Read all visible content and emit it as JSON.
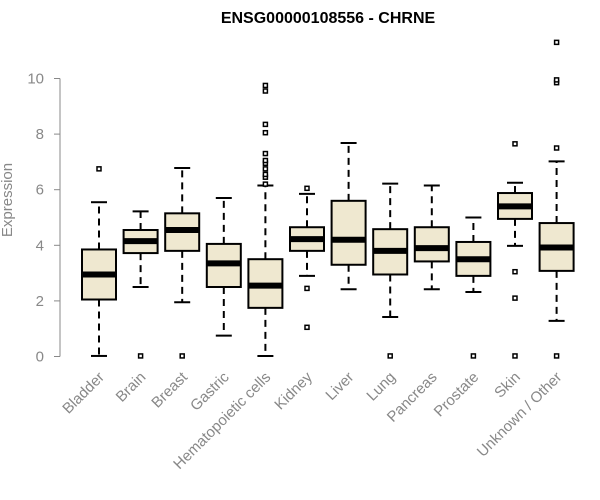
{
  "chart_data": {
    "type": "box",
    "title": "ENSG00000108556 - CHRNE",
    "xlabel": "",
    "ylabel": "Expression",
    "ylim": [
      0,
      11.5
    ],
    "yticks": [
      0,
      2,
      4,
      6,
      8,
      10
    ],
    "grid": false,
    "legend": "none",
    "colors": {
      "box_fill": "#efe8d0",
      "stroke": "#000000",
      "axis": "#888888"
    },
    "categories": [
      "Bladder",
      "Brain",
      "Breast",
      "Gastric",
      "Hematopoietic cells",
      "Kidney",
      "Liver",
      "Lung",
      "Pancreas",
      "Prostate",
      "Skin",
      "Unknown / Other"
    ],
    "boxes": [
      {
        "q1": 2.05,
        "median": 2.95,
        "q3": 3.85,
        "whisker_low": 0.02,
        "whisker_high": 5.55,
        "outliers": [
          6.75
        ]
      },
      {
        "q1": 3.72,
        "median": 4.15,
        "q3": 4.55,
        "whisker_low": 2.5,
        "whisker_high": 5.22,
        "outliers": [
          0.02
        ]
      },
      {
        "q1": 3.8,
        "median": 4.55,
        "q3": 5.15,
        "whisker_low": 1.95,
        "whisker_high": 6.78,
        "outliers": [
          0.02
        ]
      },
      {
        "q1": 2.5,
        "median": 3.35,
        "q3": 4.05,
        "whisker_low": 0.75,
        "whisker_high": 5.7,
        "outliers": []
      },
      {
        "q1": 1.75,
        "median": 2.55,
        "q3": 3.5,
        "whisker_low": 0.02,
        "whisker_high": 6.15,
        "outliers": [
          6.2,
          6.45,
          6.55,
          6.75,
          6.95,
          7.05,
          7.3,
          8.05,
          8.35,
          9.55,
          9.75
        ]
      },
      {
        "q1": 3.8,
        "median": 4.22,
        "q3": 4.65,
        "whisker_low": 2.9,
        "whisker_high": 5.85,
        "outliers": [
          6.05,
          2.45,
          1.05
        ]
      },
      {
        "q1": 3.3,
        "median": 4.2,
        "q3": 5.6,
        "whisker_low": 2.42,
        "whisker_high": 7.68,
        "outliers": []
      },
      {
        "q1": 2.95,
        "median": 3.8,
        "q3": 4.58,
        "whisker_low": 1.42,
        "whisker_high": 6.22,
        "outliers": [
          0.02
        ]
      },
      {
        "q1": 3.42,
        "median": 3.9,
        "q3": 4.65,
        "whisker_low": 2.42,
        "whisker_high": 6.15,
        "outliers": []
      },
      {
        "q1": 2.9,
        "median": 3.5,
        "q3": 4.12,
        "whisker_low": 2.32,
        "whisker_high": 5.0,
        "outliers": [
          0.02
        ]
      },
      {
        "q1": 4.95,
        "median": 5.4,
        "q3": 5.88,
        "whisker_low": 3.98,
        "whisker_high": 6.25,
        "outliers": [
          7.65,
          3.05,
          2.1,
          0.02
        ]
      },
      {
        "q1": 3.08,
        "median": 3.92,
        "q3": 4.8,
        "whisker_low": 1.28,
        "whisker_high": 7.02,
        "outliers": [
          7.5,
          9.85,
          9.95,
          11.3,
          0.02
        ]
      }
    ]
  }
}
